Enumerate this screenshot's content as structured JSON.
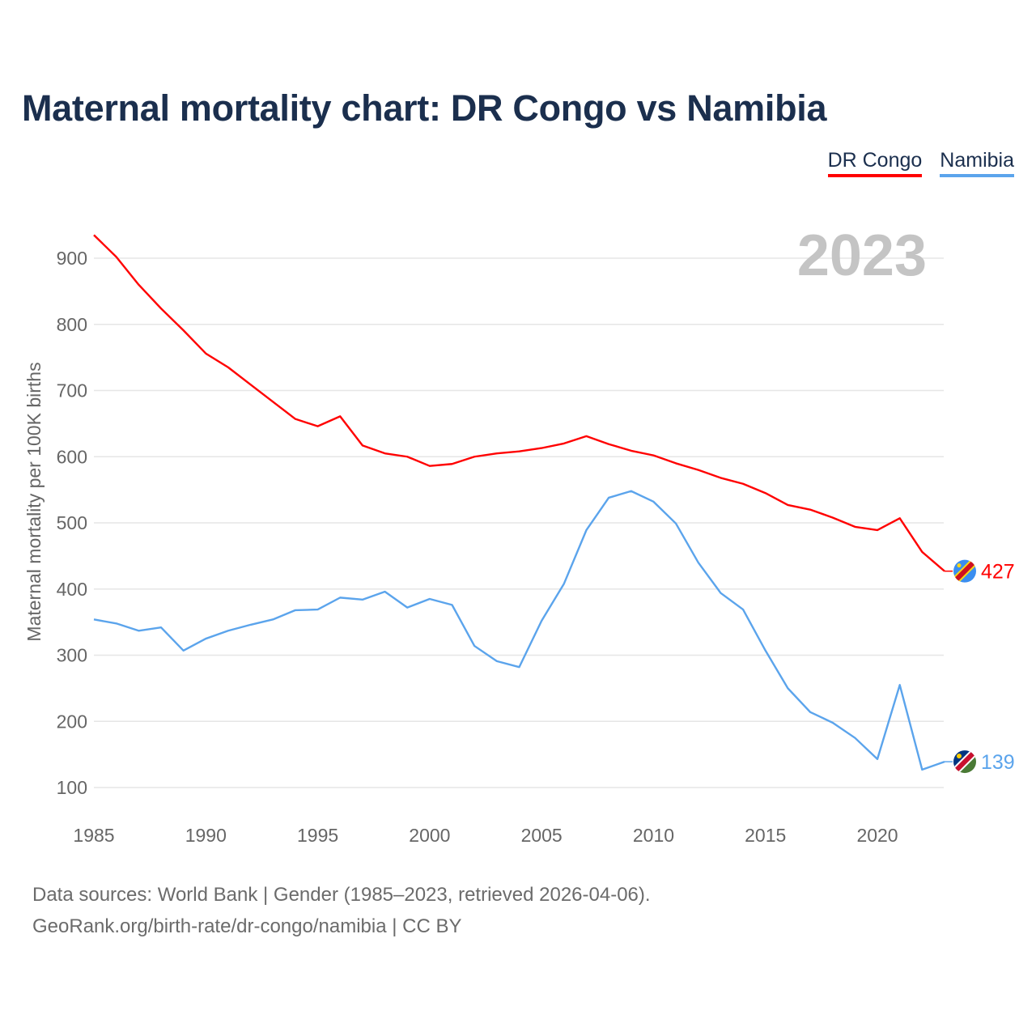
{
  "title": "Maternal mortality chart: DR Congo vs Namibia",
  "legend": [
    {
      "label": "DR Congo",
      "color": "#ff0000"
    },
    {
      "label": "Namibia",
      "color": "#5ba4ec"
    }
  ],
  "footer": {
    "line1": "Data sources: World Bank | Gender (1985–2023, retrieved 2026-04-06).",
    "line2": "GeoRank.org/birth-rate/dr-congo/namibia | CC BY"
  },
  "chart_data": {
    "type": "line",
    "title": "Maternal mortality chart: DR Congo vs Namibia",
    "year_label": "2023",
    "ylabel": "Maternal mortality per 100K births",
    "xlabel": "",
    "xlim": [
      1985,
      2023
    ],
    "ylim": [
      100,
      900
    ],
    "x_ticks": [
      1985,
      1990,
      1995,
      2000,
      2005,
      2010,
      2015,
      2020
    ],
    "y_ticks": [
      100,
      200,
      300,
      400,
      500,
      600,
      700,
      800,
      900
    ],
    "grid": true,
    "legend_position": "top-right",
    "x": [
      1985,
      1986,
      1987,
      1988,
      1989,
      1990,
      1991,
      1992,
      1993,
      1994,
      1995,
      1996,
      1997,
      1998,
      1999,
      2000,
      2001,
      2002,
      2003,
      2004,
      2005,
      2006,
      2007,
      2008,
      2009,
      2010,
      2011,
      2012,
      2013,
      2014,
      2015,
      2016,
      2017,
      2018,
      2019,
      2020,
      2021,
      2022,
      2023
    ],
    "series": [
      {
        "name": "DR Congo",
        "color": "#ff0000",
        "end_label": "427",
        "values": [
          935,
          902,
          860,
          824,
          791,
          756,
          735,
          709,
          683,
          657,
          646,
          661,
          617,
          605,
          600,
          586,
          589,
          600,
          605,
          608,
          613,
          620,
          631,
          619,
          609,
          602,
          590,
          580,
          568,
          559,
          545,
          527,
          520,
          508,
          494,
          489,
          507,
          456,
          427
        ]
      },
      {
        "name": "Namibia",
        "color": "#5ba4ec",
        "end_label": "139",
        "values": [
          354,
          348,
          337,
          342,
          307,
          325,
          337,
          346,
          354,
          368,
          369,
          387,
          384,
          396,
          372,
          385,
          376,
          314,
          291,
          282,
          352,
          408,
          489,
          538,
          548,
          532,
          499,
          440,
          394,
          369,
          307,
          250,
          214,
          198,
          175,
          143,
          255,
          127,
          139
        ]
      }
    ]
  }
}
